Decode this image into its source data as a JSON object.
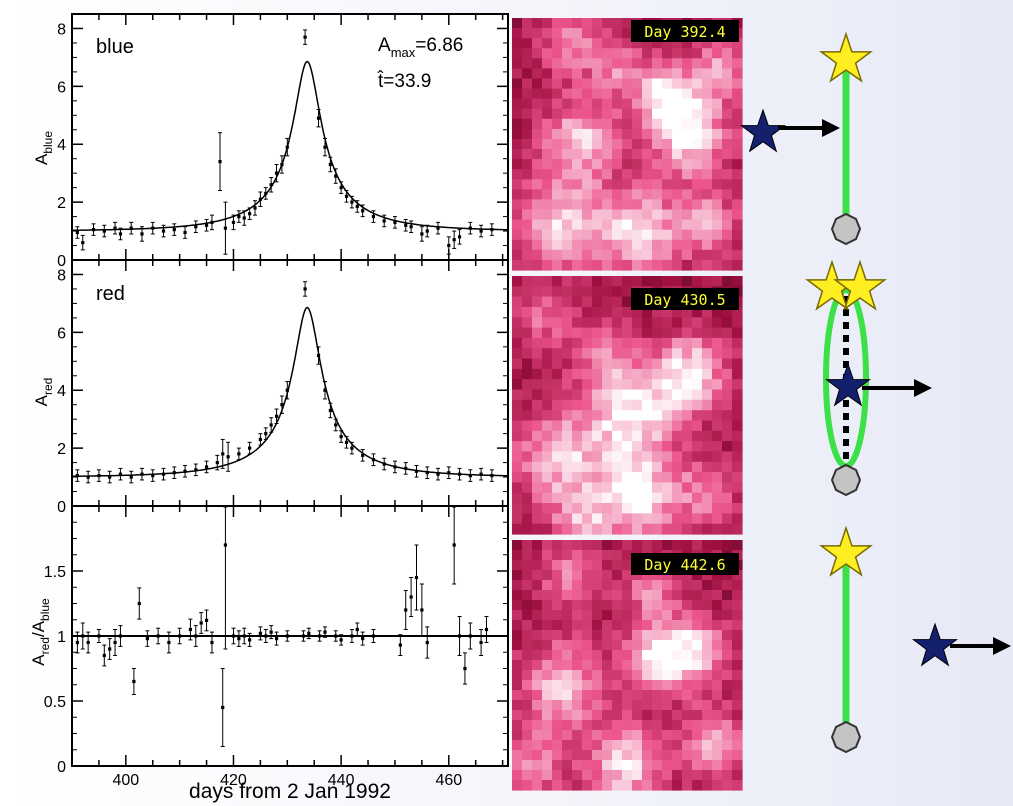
{
  "chart_data": [
    {
      "type": "scatter",
      "panel": "blue",
      "label": "blue",
      "ylabel_main": "A",
      "ylabel_sub": "blue",
      "annotation_amax_main": "A",
      "annotation_amax_sub": "max",
      "annotation_amax_value": "=6.86",
      "annotation_that": "t̂=33.9",
      "xlim": [
        390,
        471
      ],
      "ylim": [
        0,
        8.5
      ],
      "yticks": [
        0,
        2,
        4,
        6,
        8
      ],
      "model_curve": {
        "peak_x": 433.7,
        "t_hat": 33.9,
        "a_max": 6.86
      },
      "points": [
        {
          "x": 391,
          "y": 0.95,
          "e": 0.2
        },
        {
          "x": 392,
          "y": 0.6,
          "e": 0.25
        },
        {
          "x": 394,
          "y": 1.05,
          "e": 0.2
        },
        {
          "x": 396,
          "y": 1.0,
          "e": 0.2
        },
        {
          "x": 398,
          "y": 1.1,
          "e": 0.2
        },
        {
          "x": 399,
          "y": 0.9,
          "e": 0.2
        },
        {
          "x": 401,
          "y": 1.1,
          "e": 0.2
        },
        {
          "x": 403,
          "y": 0.9,
          "e": 0.25
        },
        {
          "x": 405,
          "y": 1.1,
          "e": 0.2
        },
        {
          "x": 407,
          "y": 1.0,
          "e": 0.2
        },
        {
          "x": 409,
          "y": 1.05,
          "e": 0.2
        },
        {
          "x": 411,
          "y": 0.95,
          "e": 0.2
        },
        {
          "x": 413,
          "y": 1.15,
          "e": 0.2
        },
        {
          "x": 415,
          "y": 1.2,
          "e": 0.2
        },
        {
          "x": 416,
          "y": 1.3,
          "e": 0.25
        },
        {
          "x": 417.5,
          "y": 3.4,
          "e": 1.0
        },
        {
          "x": 418.5,
          "y": 1.1,
          "e": 0.9
        },
        {
          "x": 420,
          "y": 1.3,
          "e": 0.25
        },
        {
          "x": 421,
          "y": 1.5,
          "e": 0.2
        },
        {
          "x": 422,
          "y": 1.45,
          "e": 0.25
        },
        {
          "x": 423,
          "y": 1.6,
          "e": 0.2
        },
        {
          "x": 424,
          "y": 1.8,
          "e": 0.25
        },
        {
          "x": 425,
          "y": 2.1,
          "e": 0.25
        },
        {
          "x": 426,
          "y": 2.3,
          "e": 0.2
        },
        {
          "x": 427,
          "y": 2.6,
          "e": 0.25
        },
        {
          "x": 428,
          "y": 3.0,
          "e": 0.3
        },
        {
          "x": 429,
          "y": 3.3,
          "e": 0.3
        },
        {
          "x": 430,
          "y": 3.9,
          "e": 0.3
        },
        {
          "x": 433.3,
          "y": 7.7,
          "e": 0.25
        },
        {
          "x": 435.8,
          "y": 4.9,
          "e": 0.3
        },
        {
          "x": 437,
          "y": 3.9,
          "e": 0.3
        },
        {
          "x": 438,
          "y": 3.3,
          "e": 0.25
        },
        {
          "x": 439,
          "y": 2.9,
          "e": 0.25
        },
        {
          "x": 440,
          "y": 2.5,
          "e": 0.2
        },
        {
          "x": 441,
          "y": 2.2,
          "e": 0.2
        },
        {
          "x": 442,
          "y": 2.0,
          "e": 0.2
        },
        {
          "x": 443,
          "y": 1.85,
          "e": 0.2
        },
        {
          "x": 444,
          "y": 1.7,
          "e": 0.2
        },
        {
          "x": 446,
          "y": 1.5,
          "e": 0.2
        },
        {
          "x": 448,
          "y": 1.35,
          "e": 0.2
        },
        {
          "x": 450,
          "y": 1.3,
          "e": 0.2
        },
        {
          "x": 452,
          "y": 1.2,
          "e": 0.2
        },
        {
          "x": 453,
          "y": 1.15,
          "e": 0.2
        },
        {
          "x": 455,
          "y": 0.9,
          "e": 0.25
        },
        {
          "x": 456,
          "y": 1.0,
          "e": 0.2
        },
        {
          "x": 458,
          "y": 1.1,
          "e": 0.2
        },
        {
          "x": 460,
          "y": 0.5,
          "e": 0.3
        },
        {
          "x": 461,
          "y": 0.7,
          "e": 0.3
        },
        {
          "x": 462,
          "y": 0.8,
          "e": 0.25
        },
        {
          "x": 464,
          "y": 1.1,
          "e": 0.2
        },
        {
          "x": 466,
          "y": 1.0,
          "e": 0.2
        },
        {
          "x": 468,
          "y": 1.05,
          "e": 0.2
        }
      ]
    },
    {
      "type": "scatter",
      "panel": "red",
      "label": "red",
      "ylabel_main": "A",
      "ylabel_sub": "red",
      "xlim": [
        390,
        471
      ],
      "ylim": [
        0,
        8.5
      ],
      "yticks": [
        0,
        2,
        4,
        6,
        8
      ],
      "model_curve": {
        "peak_x": 433.7,
        "t_hat": 33.9,
        "a_max": 6.86
      },
      "points": [
        {
          "x": 391,
          "y": 1.05,
          "e": 0.2
        },
        {
          "x": 393,
          "y": 1.0,
          "e": 0.2
        },
        {
          "x": 395,
          "y": 1.05,
          "e": 0.2
        },
        {
          "x": 397,
          "y": 1.0,
          "e": 0.2
        },
        {
          "x": 399,
          "y": 1.1,
          "e": 0.2
        },
        {
          "x": 401,
          "y": 1.0,
          "e": 0.2
        },
        {
          "x": 403,
          "y": 1.1,
          "e": 0.2
        },
        {
          "x": 405,
          "y": 1.05,
          "e": 0.2
        },
        {
          "x": 407,
          "y": 1.1,
          "e": 0.2
        },
        {
          "x": 409,
          "y": 1.15,
          "e": 0.2
        },
        {
          "x": 411,
          "y": 1.2,
          "e": 0.2
        },
        {
          "x": 413,
          "y": 1.25,
          "e": 0.2
        },
        {
          "x": 415,
          "y": 1.35,
          "e": 0.2
        },
        {
          "x": 417,
          "y": 1.5,
          "e": 0.25
        },
        {
          "x": 418,
          "y": 1.8,
          "e": 0.5
        },
        {
          "x": 419,
          "y": 1.7,
          "e": 0.5
        },
        {
          "x": 421,
          "y": 1.8,
          "e": 0.2
        },
        {
          "x": 423,
          "y": 2.0,
          "e": 0.2
        },
        {
          "x": 425,
          "y": 2.3,
          "e": 0.2
        },
        {
          "x": 426,
          "y": 2.5,
          "e": 0.2
        },
        {
          "x": 427,
          "y": 2.8,
          "e": 0.25
        },
        {
          "x": 428,
          "y": 3.1,
          "e": 0.25
        },
        {
          "x": 429,
          "y": 3.5,
          "e": 0.3
        },
        {
          "x": 430,
          "y": 4.0,
          "e": 0.3
        },
        {
          "x": 433.3,
          "y": 7.5,
          "e": 0.25
        },
        {
          "x": 435.8,
          "y": 5.2,
          "e": 0.3
        },
        {
          "x": 437,
          "y": 4.0,
          "e": 0.3
        },
        {
          "x": 438,
          "y": 3.3,
          "e": 0.25
        },
        {
          "x": 439,
          "y": 2.8,
          "e": 0.2
        },
        {
          "x": 440,
          "y": 2.4,
          "e": 0.2
        },
        {
          "x": 441,
          "y": 2.2,
          "e": 0.2
        },
        {
          "x": 442,
          "y": 2.0,
          "e": 0.2
        },
        {
          "x": 444,
          "y": 1.75,
          "e": 0.2
        },
        {
          "x": 446,
          "y": 1.6,
          "e": 0.2
        },
        {
          "x": 448,
          "y": 1.45,
          "e": 0.2
        },
        {
          "x": 450,
          "y": 1.35,
          "e": 0.2
        },
        {
          "x": 452,
          "y": 1.3,
          "e": 0.2
        },
        {
          "x": 454,
          "y": 1.2,
          "e": 0.2
        },
        {
          "x": 456,
          "y": 1.15,
          "e": 0.2
        },
        {
          "x": 458,
          "y": 1.1,
          "e": 0.2
        },
        {
          "x": 460,
          "y": 1.15,
          "e": 0.2
        },
        {
          "x": 462,
          "y": 1.1,
          "e": 0.2
        },
        {
          "x": 464,
          "y": 1.05,
          "e": 0.2
        },
        {
          "x": 466,
          "y": 1.1,
          "e": 0.2
        },
        {
          "x": 468,
          "y": 1.05,
          "e": 0.2
        }
      ]
    },
    {
      "type": "scatter",
      "panel": "ratio",
      "ylabel_parts": [
        "A",
        "red",
        "/A",
        "blue"
      ],
      "xlabel": "days from 2 Jan 1992",
      "xlim": [
        390,
        471
      ],
      "ylim": [
        0,
        2.0
      ],
      "yticks": [
        0,
        0.5,
        1,
        1.5
      ],
      "ytick_labels": [
        "0",
        "0.5",
        "1",
        "1.5"
      ],
      "xticks": [
        400,
        420,
        440,
        460
      ],
      "hline": 1,
      "points": [
        {
          "x": 391,
          "y": 0.95,
          "e": 0.08
        },
        {
          "x": 392,
          "y": 1.0,
          "e": 0.1
        },
        {
          "x": 393,
          "y": 0.95,
          "e": 0.08
        },
        {
          "x": 395,
          "y": 1.0,
          "e": 0.05
        },
        {
          "x": 396,
          "y": 0.85,
          "e": 0.08
        },
        {
          "x": 397,
          "y": 0.9,
          "e": 0.08
        },
        {
          "x": 398,
          "y": 0.95,
          "e": 0.1
        },
        {
          "x": 399,
          "y": 1.0,
          "e": 0.08
        },
        {
          "x": 401.5,
          "y": 0.65,
          "e": 0.1
        },
        {
          "x": 402.5,
          "y": 1.25,
          "e": 0.12
        },
        {
          "x": 404,
          "y": 0.98,
          "e": 0.06
        },
        {
          "x": 406,
          "y": 1.0,
          "e": 0.06
        },
        {
          "x": 408,
          "y": 0.95,
          "e": 0.08
        },
        {
          "x": 410,
          "y": 1.0,
          "e": 0.06
        },
        {
          "x": 412,
          "y": 1.05,
          "e": 0.08
        },
        {
          "x": 413,
          "y": 1.0,
          "e": 0.08
        },
        {
          "x": 414,
          "y": 1.1,
          "e": 0.08
        },
        {
          "x": 415,
          "y": 1.12,
          "e": 0.08
        },
        {
          "x": 416,
          "y": 0.95,
          "e": 0.08
        },
        {
          "x": 418,
          "y": 0.45,
          "e": 0.3
        },
        {
          "x": 418.5,
          "y": 1.7,
          "e": 0.8
        },
        {
          "x": 420,
          "y": 1.0,
          "e": 0.06
        },
        {
          "x": 421,
          "y": 0.98,
          "e": 0.06
        },
        {
          "x": 422,
          "y": 1.0,
          "e": 0.06
        },
        {
          "x": 423,
          "y": 0.97,
          "e": 0.05
        },
        {
          "x": 425,
          "y": 1.02,
          "e": 0.05
        },
        {
          "x": 426,
          "y": 1.0,
          "e": 0.05
        },
        {
          "x": 427,
          "y": 1.03,
          "e": 0.05
        },
        {
          "x": 428,
          "y": 0.98,
          "e": 0.05
        },
        {
          "x": 430,
          "y": 1.0,
          "e": 0.04
        },
        {
          "x": 433,
          "y": 1.0,
          "e": 0.04
        },
        {
          "x": 434,
          "y": 1.02,
          "e": 0.04
        },
        {
          "x": 436,
          "y": 1.0,
          "e": 0.04
        },
        {
          "x": 437,
          "y": 1.03,
          "e": 0.04
        },
        {
          "x": 439,
          "y": 1.0,
          "e": 0.04
        },
        {
          "x": 440,
          "y": 0.97,
          "e": 0.04
        },
        {
          "x": 442,
          "y": 1.0,
          "e": 0.05
        },
        {
          "x": 443,
          "y": 1.05,
          "e": 0.05
        },
        {
          "x": 444,
          "y": 0.98,
          "e": 0.05
        },
        {
          "x": 446,
          "y": 1.0,
          "e": 0.05
        },
        {
          "x": 451,
          "y": 0.93,
          "e": 0.08
        },
        {
          "x": 452,
          "y": 1.2,
          "e": 0.15
        },
        {
          "x": 453,
          "y": 1.3,
          "e": 0.15
        },
        {
          "x": 454,
          "y": 1.45,
          "e": 0.25
        },
        {
          "x": 455,
          "y": 1.2,
          "e": 0.2
        },
        {
          "x": 456,
          "y": 0.95,
          "e": 0.12
        },
        {
          "x": 461,
          "y": 1.7,
          "e": 0.3
        },
        {
          "x": 462,
          "y": 1.0,
          "e": 0.15
        },
        {
          "x": 463,
          "y": 0.75,
          "e": 0.12
        },
        {
          "x": 464,
          "y": 1.0,
          "e": 0.1
        },
        {
          "x": 466,
          "y": 0.95,
          "e": 0.1
        },
        {
          "x": 467,
          "y": 1.05,
          "e": 0.1
        }
      ]
    }
  ],
  "images": [
    {
      "label": "Day 392.4"
    },
    {
      "label": "Day 430.5"
    },
    {
      "label": "Day 442.6"
    }
  ],
  "colors": {
    "green_line": "#3ee04a",
    "star_yellow": "#ffee22",
    "star_navy": "#14206e",
    "arrow": "#000000",
    "observer": "#c4c4c4",
    "image_label": "#ffff33",
    "pink_base": "#d2327c"
  },
  "icons": [
    "source-star-icon",
    "lens-star-icon",
    "arrow-right-icon",
    "observer-icon"
  ]
}
